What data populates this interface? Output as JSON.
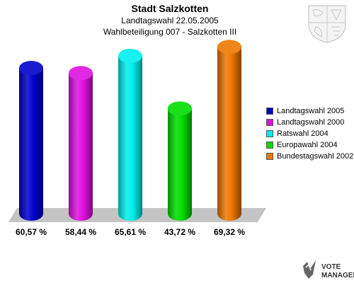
{
  "header": {
    "title": "Stadt Salzkotten",
    "subtitle_1": "Landtagswahl 22.05.2005",
    "subtitle_2": "Wahlbeteiligung 007 - Salzkotten III"
  },
  "chart_data": {
    "type": "bar",
    "title": "Stadt Salzkotten",
    "categories": [
      "Landtagswahl 2005",
      "Landtagswahl 2000",
      "Ratswahl 2004",
      "Europawahl 2004",
      "Bundestagswahl 2002"
    ],
    "values": [
      60.57,
      58.44,
      65.61,
      43.72,
      69.32
    ],
    "value_labels": [
      "60,57 %",
      "58,44 %",
      "65,61 %",
      "43,72 %",
      "69,32 %"
    ],
    "colors": [
      "#0000cc",
      "#e010e0",
      "#00eeee",
      "#00dd00",
      "#ee7700"
    ],
    "ylim": [
      0,
      80
    ],
    "legend_position": "right",
    "grid": false,
    "style": "3d-cylinders"
  },
  "legend": {
    "items": [
      {
        "label": "Landtagswahl 2005",
        "color": "#0000cc"
      },
      {
        "label": "Landtagswahl 2000",
        "color": "#e010e0"
      },
      {
        "label": "Ratswahl 2004",
        "color": "#00eeee"
      },
      {
        "label": "Europawahl 2004",
        "color": "#00dd00"
      },
      {
        "label": "Bundestagswahl 2002",
        "color": "#ee7700"
      }
    ]
  },
  "branding": {
    "logo_text_1": "VOTE",
    "logo_text_2": "MANAGER"
  }
}
